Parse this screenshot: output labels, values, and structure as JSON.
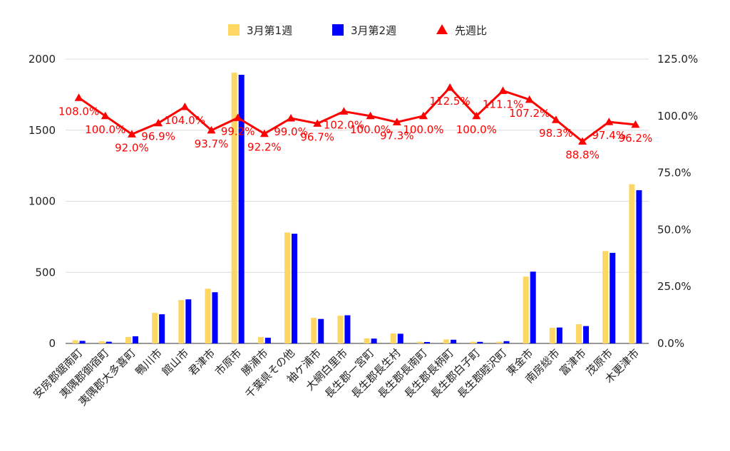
{
  "chart_data": {
    "type": "bar",
    "categories": [
      "安房郡鋸南町",
      "夷隅郡御宿町",
      "夷隅郡大多喜町",
      "鴨川市",
      "館山市",
      "君津市",
      "市原市",
      "勝浦市",
      "千葉県その他",
      "袖ケ浦市",
      "大網白里市",
      "長生郡一宮町",
      "長生郡長生村",
      "長生郡長南町",
      "長生郡長柄町",
      "長生郡白子町",
      "長生郡睦沢町",
      "東金市",
      "南房総市",
      "富津市",
      "茂原市",
      "木更津市"
    ],
    "series": [
      {
        "name": "3月第1週",
        "color": "#fdd663",
        "values": [
          22,
          15,
          45,
          215,
          305,
          385,
          1905,
          45,
          780,
          180,
          195,
          35,
          70,
          12,
          28,
          12,
          12,
          470,
          110,
          135,
          650,
          1120
        ]
      },
      {
        "name": "3月第2週",
        "color": "#0000ff",
        "values": [
          18,
          12,
          50,
          205,
          310,
          360,
          1890,
          40,
          772,
          172,
          198,
          34,
          68,
          10,
          26,
          11,
          16,
          505,
          112,
          122,
          637,
          1078
        ]
      },
      {
        "name": "先週比",
        "color": "#ff0000",
        "axis": "right",
        "values": [
          108.0,
          100.0,
          92.0,
          96.9,
          104.0,
          93.7,
          99.2,
          92.2,
          99.0,
          96.7,
          102.0,
          100.0,
          97.3,
          100.0,
          112.5,
          100.0,
          111.1,
          107.2,
          98.3,
          88.8,
          97.4,
          96.2
        ]
      }
    ],
    "data_labels": [
      "108.0%",
      "100.0%",
      "92.0%",
      "96.9%",
      "104.0%",
      "93.7%",
      "99.2%",
      "92.2%",
      "99.0%",
      "96.7%",
      "102.0%",
      "100.0%",
      "97.3%",
      "100.0%",
      "112.5%",
      "100.0%",
      "111.1%",
      "107.2%",
      "98.3%",
      "88.8%",
      "97.4%",
      "96.2%"
    ],
    "y_left": {
      "ylim": [
        0,
        2000
      ],
      "ticks": [
        "0",
        "500",
        "1000",
        "1500",
        "2000"
      ]
    },
    "y_right": {
      "ylim": [
        0,
        125
      ],
      "ticks": [
        "0.0%",
        "25.0%",
        "50.0%",
        "75.0%",
        "100.0%",
        "125.0%"
      ]
    },
    "legend_position": "top",
    "grid": true
  }
}
